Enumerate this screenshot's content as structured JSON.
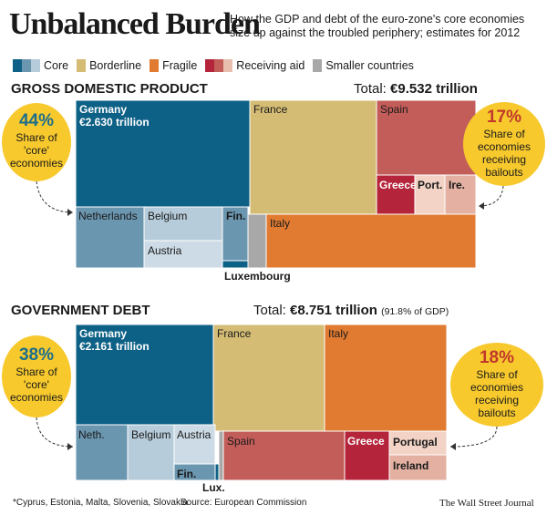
{
  "header": {
    "title": "Unbalanced Burden",
    "subtitle": "How the GDP and debt of the euro-zone's core economies size up against the troubled periphery; estimates for 2012"
  },
  "legend": [
    {
      "label": "Core",
      "colors": [
        "#0e6186",
        "#6b96b0",
        "#b6ccda"
      ]
    },
    {
      "label": "Borderline",
      "colors": [
        "#d4bc74"
      ]
    },
    {
      "label": "Fragile",
      "colors": [
        "#e27b32"
      ]
    },
    {
      "label": "Receiving aid",
      "colors": [
        "#b4243a",
        "#c35d59",
        "#e8bfae"
      ]
    },
    {
      "label": "Smaller countries",
      "colors": [
        "#a8a8a8"
      ]
    }
  ],
  "colors": {
    "core_dark": "#0e6186",
    "core_mid": "#6b96b0",
    "core_light": "#b6ccda",
    "core_lightest": "#ccdbe5",
    "borderline": "#d4bc74",
    "fragile": "#e27b32",
    "aid_dark": "#b4243a",
    "aid_mid": "#c35d59",
    "aid_light": "#f2d3c5",
    "aid_light2": "#e3b0a1",
    "smaller": "#a8a8a8",
    "core_bubble_text": "#1c6d8c",
    "aid_bubble_text": "#c0392b",
    "bubble": "#f7c92d"
  },
  "gdp": {
    "title": "GROSS DOMESTIC PRODUCT",
    "total_label": "Total:",
    "total_value": "€9.532 trillion",
    "core_bubble": {
      "pct": "44%",
      "text": [
        "Share of",
        "'core'",
        "economies"
      ]
    },
    "aid_bubble": {
      "pct": "17%",
      "text": [
        "Share of",
        "economies",
        "receiving",
        "bailouts"
      ]
    }
  },
  "debt": {
    "title": "GOVERNMENT DEBT",
    "total_label": "Total:",
    "total_value": "€8.751 trillion",
    "total_note": "(91.8% of GDP)",
    "core_bubble": {
      "pct": "38%",
      "text": [
        "Share of",
        "'core'",
        "economies"
      ]
    },
    "aid_bubble": {
      "pct": "18%",
      "text": [
        "Share of",
        "economies",
        "receiving",
        "bailouts"
      ]
    }
  },
  "chart_data": [
    {
      "type": "treemap",
      "title": "GROSS DOMESTIC PRODUCT",
      "total": "€9.532 trillion",
      "cells": [
        {
          "label": "Germany",
          "value_label": "€2.630 trillion",
          "group": "Core"
        },
        {
          "label": "France",
          "group": "Borderline"
        },
        {
          "label": "Spain",
          "group": "Receiving aid"
        },
        {
          "label": "Greece",
          "group": "Receiving aid"
        },
        {
          "label": "Port.",
          "group": "Receiving aid"
        },
        {
          "label": "Ire.",
          "group": "Receiving aid"
        },
        {
          "label": "Netherlands",
          "group": "Core"
        },
        {
          "label": "Belgium",
          "group": "Core"
        },
        {
          "label": "Austria",
          "group": "Core"
        },
        {
          "label": "Fin.",
          "group": "Core"
        },
        {
          "label": "Luxembourg",
          "group": "Core"
        },
        {
          "label": "",
          "group": "Smaller countries"
        },
        {
          "label": "Italy",
          "group": "Fragile"
        }
      ],
      "annotations": [
        {
          "pct": "44%",
          "text": "Share of 'core' economies"
        },
        {
          "pct": "17%",
          "text": "Share of economies receiving bailouts"
        }
      ]
    },
    {
      "type": "treemap",
      "title": "GOVERNMENT DEBT",
      "total": "€8.751 trillion",
      "total_note": "(91.8% of GDP)",
      "cells": [
        {
          "label": "Germany",
          "value_label": "€2.161 trillion",
          "group": "Core"
        },
        {
          "label": "France",
          "group": "Borderline"
        },
        {
          "label": "Italy",
          "group": "Fragile"
        },
        {
          "label": "Neth.",
          "group": "Core"
        },
        {
          "label": "Belgium",
          "group": "Core"
        },
        {
          "label": "Austria",
          "group": "Core"
        },
        {
          "label": "Fin.",
          "group": "Core"
        },
        {
          "label": "Lux.",
          "group": "Core"
        },
        {
          "label": "",
          "group": "Smaller countries"
        },
        {
          "label": "Spain",
          "group": "Receiving aid"
        },
        {
          "label": "Greece",
          "group": "Receiving aid"
        },
        {
          "label": "Portugal",
          "group": "Receiving aid"
        },
        {
          "label": "Ireland",
          "group": "Receiving aid"
        }
      ],
      "annotations": [
        {
          "pct": "38%",
          "text": "Share of 'core' economies"
        },
        {
          "pct": "18%",
          "text": "Share of economies receiving bailouts"
        }
      ]
    }
  ],
  "footer": {
    "note": "*Cyprus, Estonia, Malta, Slovenia, Slovakia",
    "source": "Source: European Commission",
    "credit": "The Wall Street Journal"
  }
}
